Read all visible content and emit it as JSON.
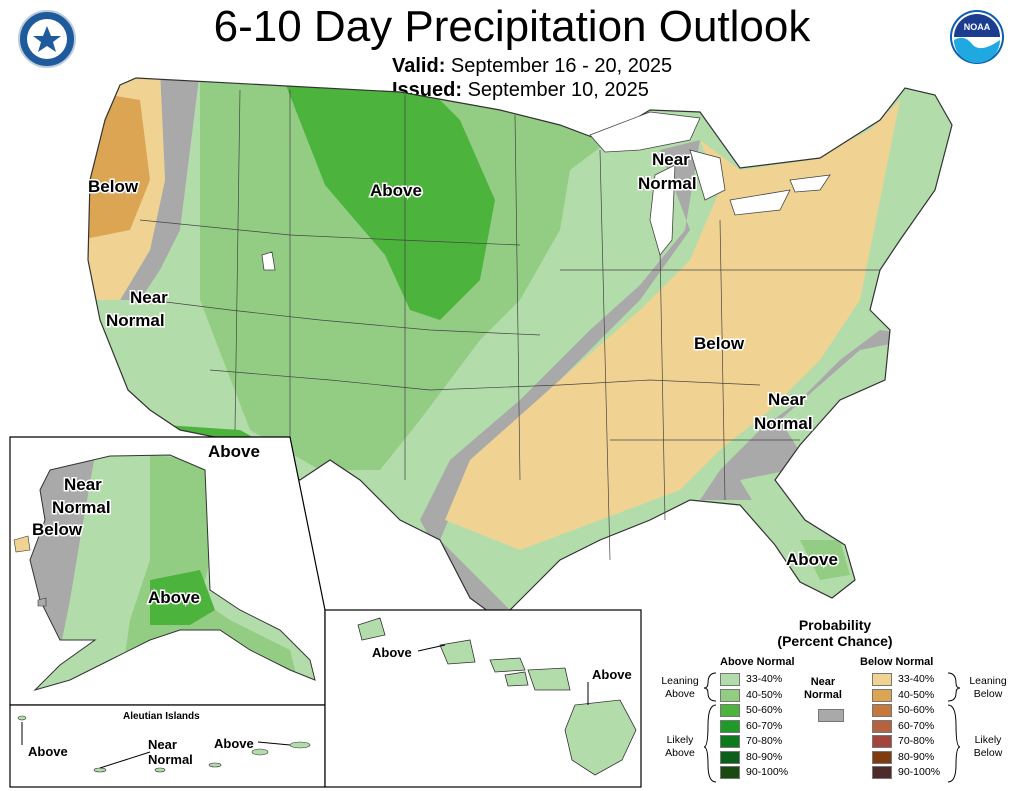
{
  "header": {
    "title": "6-10 Day Precipitation Outlook",
    "valid_label": "Valid:",
    "valid_value": "September 16 - 20, 2025",
    "issued_label": "Issued:",
    "issued_value": "September 10, 2025"
  },
  "logos": {
    "left": "commerce-department-seal-icon",
    "right": "noaa-logo-icon",
    "right_text": "NOAA"
  },
  "map_labels": {
    "conus_below_west": "Below",
    "conus_above_north": "Above",
    "conus_near_west_1": "Near",
    "conus_near_west_2": "Normal",
    "conus_above_az": "Above",
    "conus_near_lakes_1": "Near",
    "conus_near_lakes_2": "Normal",
    "conus_below_east": "Below",
    "conus_near_east_1": "Near",
    "conus_near_east_2": "Normal",
    "conus_above_fl": "Above",
    "ak_near_1": "Near",
    "ak_near_2": "Normal",
    "ak_below": "Below",
    "ak_above": "Above",
    "aleutian_title": "Aleutian Islands",
    "aleutian_above_w": "Above",
    "aleutian_near_1": "Near",
    "aleutian_near_2": "Normal",
    "aleutian_above_e": "Above",
    "hi_above_w": "Above",
    "hi_above_e": "Above"
  },
  "legend": {
    "title_1": "Probability",
    "title_2": "(Percent Chance)",
    "above_head": "Above Normal",
    "below_head": "Below Normal",
    "near_1": "Near",
    "near_2": "Normal",
    "near_color": "#a9a9a9",
    "leaning_above_1": "Leaning",
    "leaning_above_2": "Above",
    "likely_above_1": "Likely",
    "likely_above_2": "Above",
    "leaning_below_1": "Leaning",
    "leaning_below_2": "Below",
    "likely_below_1": "Likely",
    "likely_below_2": "Below",
    "above": [
      {
        "range": "33-40%",
        "color": "#b3dcab"
      },
      {
        "range": "40-50%",
        "color": "#93cd84"
      },
      {
        "range": "50-60%",
        "color": "#4cb33d"
      },
      {
        "range": "60-70%",
        "color": "#1e9a27"
      },
      {
        "range": "70-80%",
        "color": "#0b7a1d"
      },
      {
        "range": "80-90%",
        "color": "#0c5f18"
      },
      {
        "range": "90-100%",
        "color": "#1a4a0f"
      }
    ],
    "below": [
      {
        "range": "33-40%",
        "color": "#f0d393"
      },
      {
        "range": "40-50%",
        "color": "#dca553"
      },
      {
        "range": "50-60%",
        "color": "#c47a3e"
      },
      {
        "range": "60-70%",
        "color": "#b4623f"
      },
      {
        "range": "70-80%",
        "color": "#a1463a"
      },
      {
        "range": "80-90%",
        "color": "#803c11"
      },
      {
        "range": "90-100%",
        "color": "#4e2a2a"
      }
    ]
  }
}
